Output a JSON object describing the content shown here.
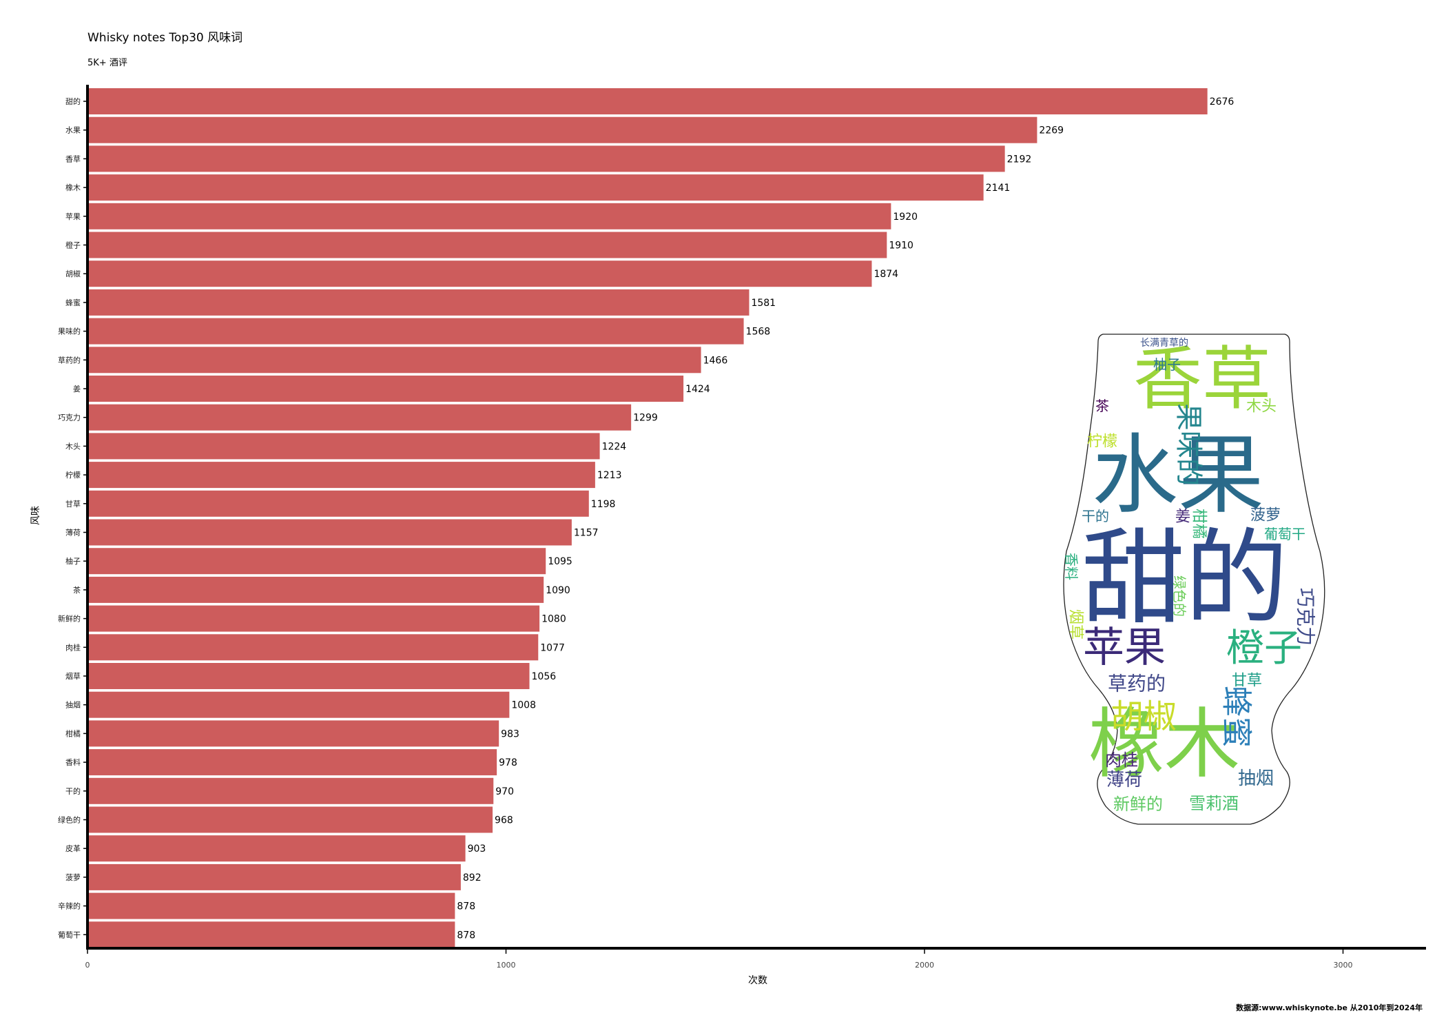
{
  "header": {
    "title": "Whisky notes Top30 风味词",
    "subtitle": "5K+ 酒评"
  },
  "footer": {
    "source": "数据源:www.whiskynote.be 从2010年到2024年"
  },
  "chart_data": {
    "type": "bar",
    "orientation": "horizontal",
    "xlabel": "次数",
    "ylabel": "风味",
    "xlim": [
      0,
      3200
    ],
    "xticks": [
      0,
      1000,
      2000,
      3000
    ],
    "grid": false,
    "bar_color": "#cd5c5c",
    "categories": [
      "甜的",
      "水果",
      "香草",
      "橡木",
      "苹果",
      "橙子",
      "胡椒",
      "蜂蜜",
      "果味的",
      "草药的",
      "姜",
      "巧克力",
      "木头",
      "柠檬",
      "甘草",
      "薄荷",
      "柚子",
      "茶",
      "新鲜的",
      "肉桂",
      "烟草",
      "抽烟",
      "柑橘",
      "香料",
      "干的",
      "绿色的",
      "皮革",
      "菠萝",
      "辛辣的",
      "葡萄干"
    ],
    "values": [
      2676,
      2269,
      2192,
      2141,
      1920,
      1910,
      1874,
      1581,
      1568,
      1466,
      1424,
      1299,
      1224,
      1213,
      1198,
      1157,
      1095,
      1090,
      1080,
      1077,
      1056,
      1008,
      983,
      978,
      970,
      968,
      903,
      892,
      878,
      878
    ]
  },
  "wordcloud": {
    "words": [
      {
        "text": "甜的",
        "color": "#2f4a8a"
      },
      {
        "text": "水果",
        "color": "#2a6a8a"
      },
      {
        "text": "香草",
        "color": "#9bd43a"
      },
      {
        "text": "橡木",
        "color": "#7ed04b"
      },
      {
        "text": "苹果",
        "color": "#3b2a78"
      },
      {
        "text": "橙子",
        "color": "#2ab07f"
      },
      {
        "text": "胡椒",
        "color": "#c9dc2a"
      },
      {
        "text": "蜂蜜",
        "color": "#2c7fb8"
      },
      {
        "text": "果味的",
        "color": "#24868e"
      },
      {
        "text": "草药的",
        "color": "#3f4788"
      },
      {
        "text": "巧克力",
        "color": "#3e4a89"
      },
      {
        "text": "木头",
        "color": "#8fd744"
      },
      {
        "text": "柠檬",
        "color": "#bcdf27"
      },
      {
        "text": "甘草",
        "color": "#1f9e89"
      },
      {
        "text": "薄荷",
        "color": "#414487"
      },
      {
        "text": "柚子",
        "color": "#2a788e"
      },
      {
        "text": "茶",
        "color": "#440154"
      },
      {
        "text": "新鲜的",
        "color": "#5ec962"
      },
      {
        "text": "肉桂",
        "color": "#482878"
      },
      {
        "text": "烟草",
        "color": "#b5de2b"
      },
      {
        "text": "抽烟",
        "color": "#31688e"
      },
      {
        "text": "柑橘",
        "color": "#35b779"
      },
      {
        "text": "香料",
        "color": "#29af7f"
      },
      {
        "text": "干的",
        "color": "#2c728e"
      },
      {
        "text": "绿色的",
        "color": "#6ccd5a"
      },
      {
        "text": "菠萝",
        "color": "#33638d"
      },
      {
        "text": "葡萄干",
        "color": "#22a884"
      },
      {
        "text": "姜",
        "color": "#472c7a"
      },
      {
        "text": "雪莉酒",
        "color": "#4ac16d"
      },
      {
        "text": "长满青草的",
        "color": "#3b528b"
      }
    ]
  }
}
